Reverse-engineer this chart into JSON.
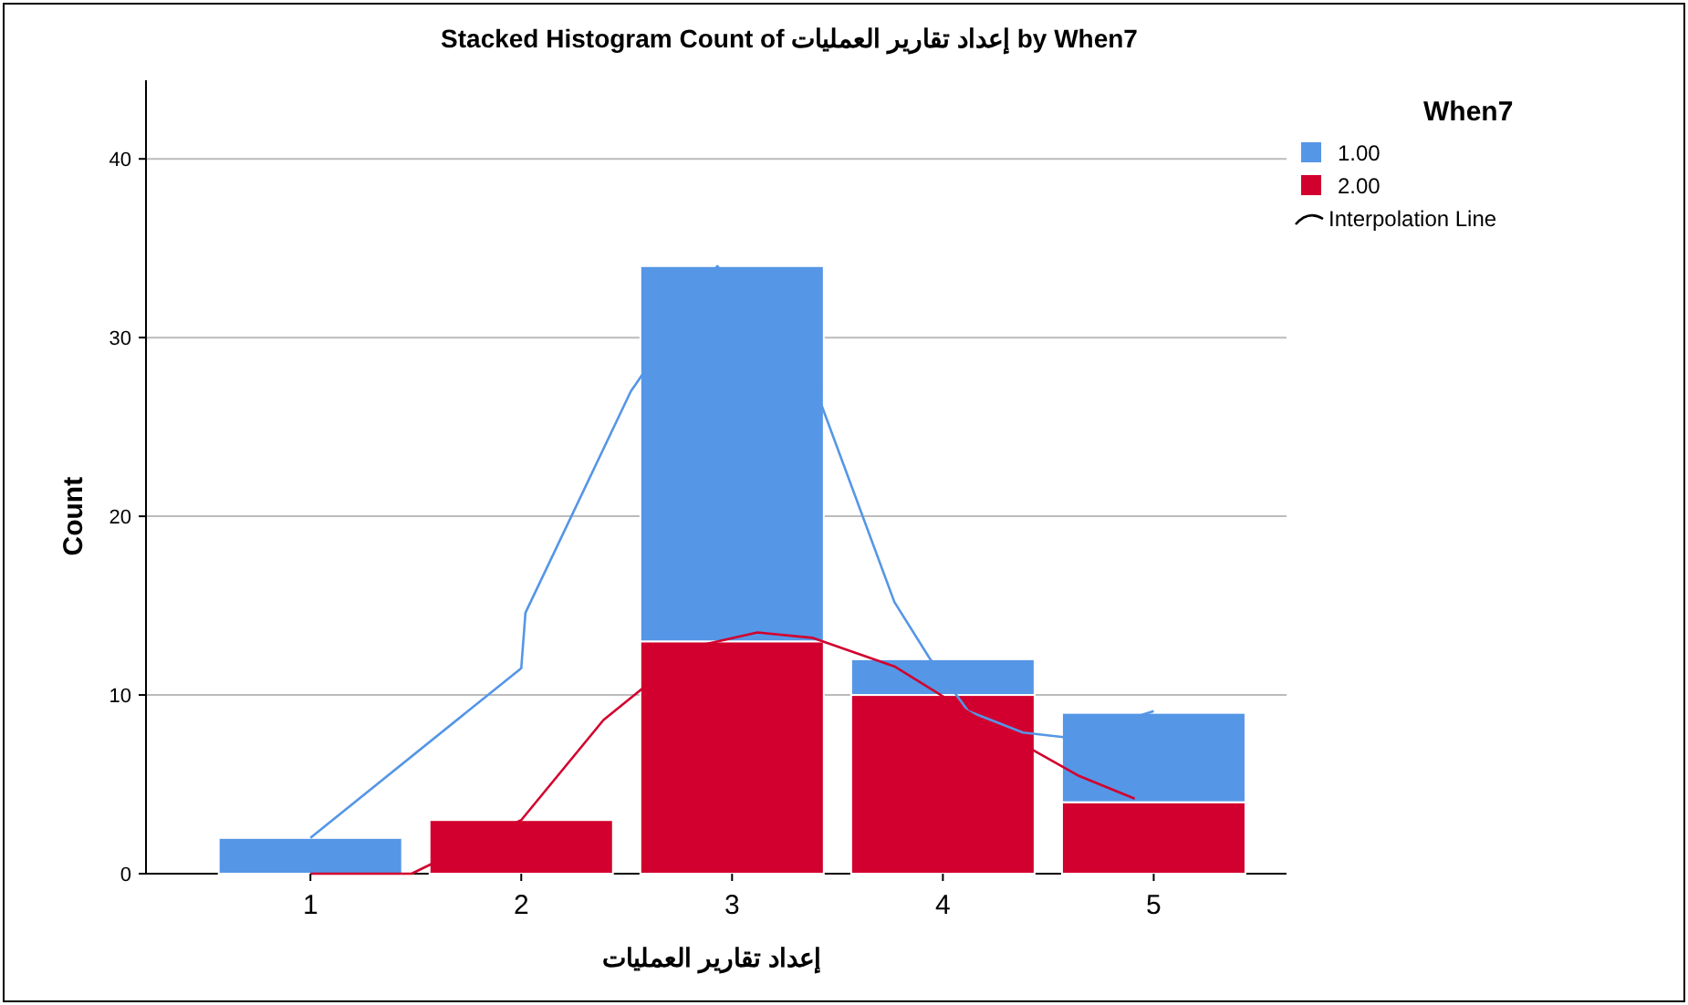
{
  "chart_data": {
    "type": "bar",
    "title": "Stacked Histogram Count of إعداد تقارير العمليات by When7",
    "xlabel": "إعداد تقارير العمليات",
    "ylabel": "Count",
    "legend_title": "When7",
    "stacked": true,
    "x": [
      1,
      2,
      3,
      4,
      5
    ],
    "xlim": [
      0.22,
      5.63
    ],
    "xticks": [
      1,
      2,
      3,
      4,
      5
    ],
    "ylim": [
      0,
      44.4
    ],
    "yticks": [
      0,
      10,
      20,
      30,
      40
    ],
    "grid": "y",
    "legend": "top right",
    "annotations": [
      "Interpolation Line"
    ],
    "series": [
      {
        "name": "2.00",
        "color": "#d2002e",
        "values": [
          0,
          3,
          13,
          10,
          4
        ]
      },
      {
        "name": "1.00",
        "color": "#5596e6",
        "values": [
          2,
          0,
          21,
          2,
          5
        ]
      },
      {
        "type": "line",
        "color": "#5596e6",
        "x": [
          1,
          2,
          2.02,
          2.52,
          2.93,
          3.4,
          3.77,
          3.94,
          4.12,
          4.38,
          4.6,
          5
        ],
        "values": [
          2,
          11.5,
          14.6,
          27,
          34,
          27,
          15.2,
          12,
          9.1,
          7.9,
          7.6,
          9.1
        ]
      },
      {
        "type": "line",
        "color": "#d2002e",
        "x": [
          1,
          1.48,
          2,
          2.39,
          2.82,
          3.12,
          3.38,
          3.77,
          4.25,
          4.64,
          4.91
        ],
        "values": [
          0,
          0,
          3,
          8.6,
          12.7,
          13.5,
          13.2,
          11.6,
          8.1,
          5.5,
          4.2
        ]
      }
    ]
  }
}
